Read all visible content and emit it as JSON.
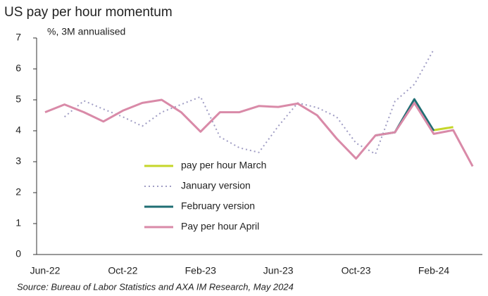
{
  "chart_data": {
    "type": "line",
    "title": "US pay per hour momentum",
    "y_label": "%, 3M annualised",
    "source": "Source: Bureau of Labor Statistics and AXA IM Research, May 2024",
    "categories": [
      "Jun-22",
      null,
      null,
      null,
      "Oct-22",
      null,
      null,
      null,
      "Feb-23",
      null,
      null,
      null,
      "Jun-23",
      null,
      null,
      null,
      "Oct-23",
      null,
      null,
      null,
      "Feb-24",
      null,
      null
    ],
    "ylim": [
      0,
      7
    ],
    "yticks": [
      0,
      1,
      2,
      3,
      4,
      5,
      6,
      7
    ],
    "series": [
      {
        "name": "pay per hour March",
        "color": "#c5d62a",
        "dash": false,
        "values": [
          null,
          null,
          null,
          null,
          null,
          null,
          null,
          null,
          null,
          null,
          null,
          null,
          null,
          null,
          null,
          null,
          null,
          null,
          null,
          null,
          4.02,
          4.12,
          null
        ]
      },
      {
        "name": "January version",
        "color": "#a09dc4",
        "dash": true,
        "values": [
          null,
          4.45,
          4.97,
          4.7,
          4.45,
          4.15,
          4.6,
          4.85,
          5.1,
          3.8,
          3.45,
          3.3,
          4.15,
          4.9,
          4.75,
          4.45,
          3.6,
          3.25,
          4.95,
          5.5,
          6.63,
          null,
          null
        ]
      },
      {
        "name": "February version",
        "color": "#1f6e73",
        "dash": false,
        "values": [
          null,
          null,
          null,
          null,
          null,
          null,
          null,
          null,
          null,
          null,
          null,
          null,
          null,
          null,
          null,
          null,
          null,
          3.85,
          3.95,
          5.02,
          4.0,
          null,
          null
        ]
      },
      {
        "name": "Pay per hour April",
        "color": "#d98aa8",
        "dash": false,
        "values": [
          4.6,
          4.85,
          4.6,
          4.3,
          4.65,
          4.9,
          5.0,
          4.6,
          3.97,
          4.6,
          4.6,
          4.8,
          4.77,
          4.88,
          4.5,
          3.75,
          3.1,
          3.85,
          3.95,
          4.9,
          3.9,
          4.02,
          2.85
        ]
      }
    ]
  }
}
